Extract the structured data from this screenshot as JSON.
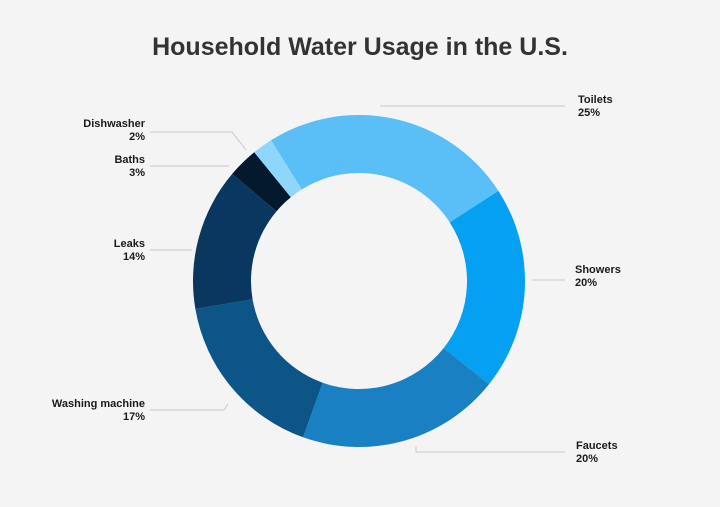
{
  "chart_data": {
    "type": "pie",
    "title": "Household Water Usage in the U.S.",
    "donut": true,
    "slices": [
      {
        "label": "Toilets",
        "value": 25,
        "value_label": "25%",
        "color": "#5ABEF7"
      },
      {
        "label": "Showers",
        "value": 20,
        "value_label": "20%",
        "color": "#05A0F2"
      },
      {
        "label": "Faucets",
        "value": 20,
        "value_label": "20%",
        "color": "#1A80C4"
      },
      {
        "label": "Washing machine",
        "value": 17,
        "value_label": "17%",
        "color": "#0C5586"
      },
      {
        "label": "Leaks",
        "value": 14,
        "value_label": "14%",
        "color": "#0A375F"
      },
      {
        "label": "Baths",
        "value": 3,
        "value_label": "3%",
        "color": "#04182E"
      },
      {
        "label": "Dishwasher",
        "value": 2,
        "value_label": "2%",
        "color": "#8FD6FB"
      }
    ]
  }
}
